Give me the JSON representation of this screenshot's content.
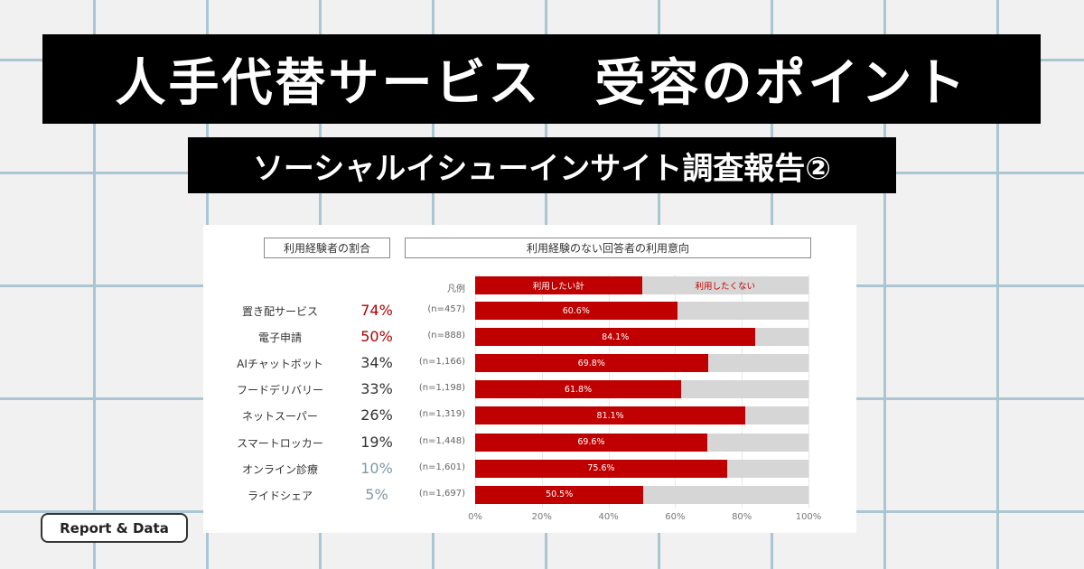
{
  "title": "人手代替サービス　受容のポイント",
  "subtitle": "ソーシャルイシューインサイト調査報告②",
  "badge": "Report & Data",
  "chart_data": {
    "type": "bar",
    "stacked": true,
    "orientation": "horizontal",
    "left_header": "利用経験者の割合",
    "right_header": "利用経験のない回答者の利用意向",
    "legend_label": "凡例",
    "legend": [
      "利用したい計",
      "利用したくない"
    ],
    "colors": {
      "yes": "#c00000",
      "no": "#d6d6d6",
      "high": "#b00000",
      "mid": "#333333",
      "low": "#7f98a6"
    },
    "categories": [
      "置き配サービス",
      "電子申請",
      "AIチャットボット",
      "フードデリバリー",
      "ネットスーパー",
      "スマートロッカー",
      "オンライン診療",
      "ライドシェア"
    ],
    "experience": [
      "74%",
      "50%",
      "34%",
      "33%",
      "26%",
      "19%",
      "10%",
      "5%"
    ],
    "experience_level": [
      "high",
      "high",
      "mid",
      "mid",
      "mid",
      "mid",
      "low",
      "low"
    ],
    "n": [
      "(n=457)",
      "(n=888)",
      "(n=1,166)",
      "(n=1,198)",
      "(n=1,319)",
      "(n=1,448)",
      "(n=1,601)",
      "(n=1,697)"
    ],
    "values": [
      60.6,
      84.1,
      69.8,
      61.8,
      81.1,
      69.6,
      75.6,
      50.5
    ],
    "value_labels": [
      "60.6%",
      "84.1%",
      "69.8%",
      "61.8%",
      "81.1%",
      "69.6%",
      "75.6%",
      "50.5%"
    ],
    "xticks": [
      "0%",
      "20%",
      "40%",
      "60%",
      "80%",
      "100%"
    ],
    "xlim": [
      0,
      100
    ]
  }
}
